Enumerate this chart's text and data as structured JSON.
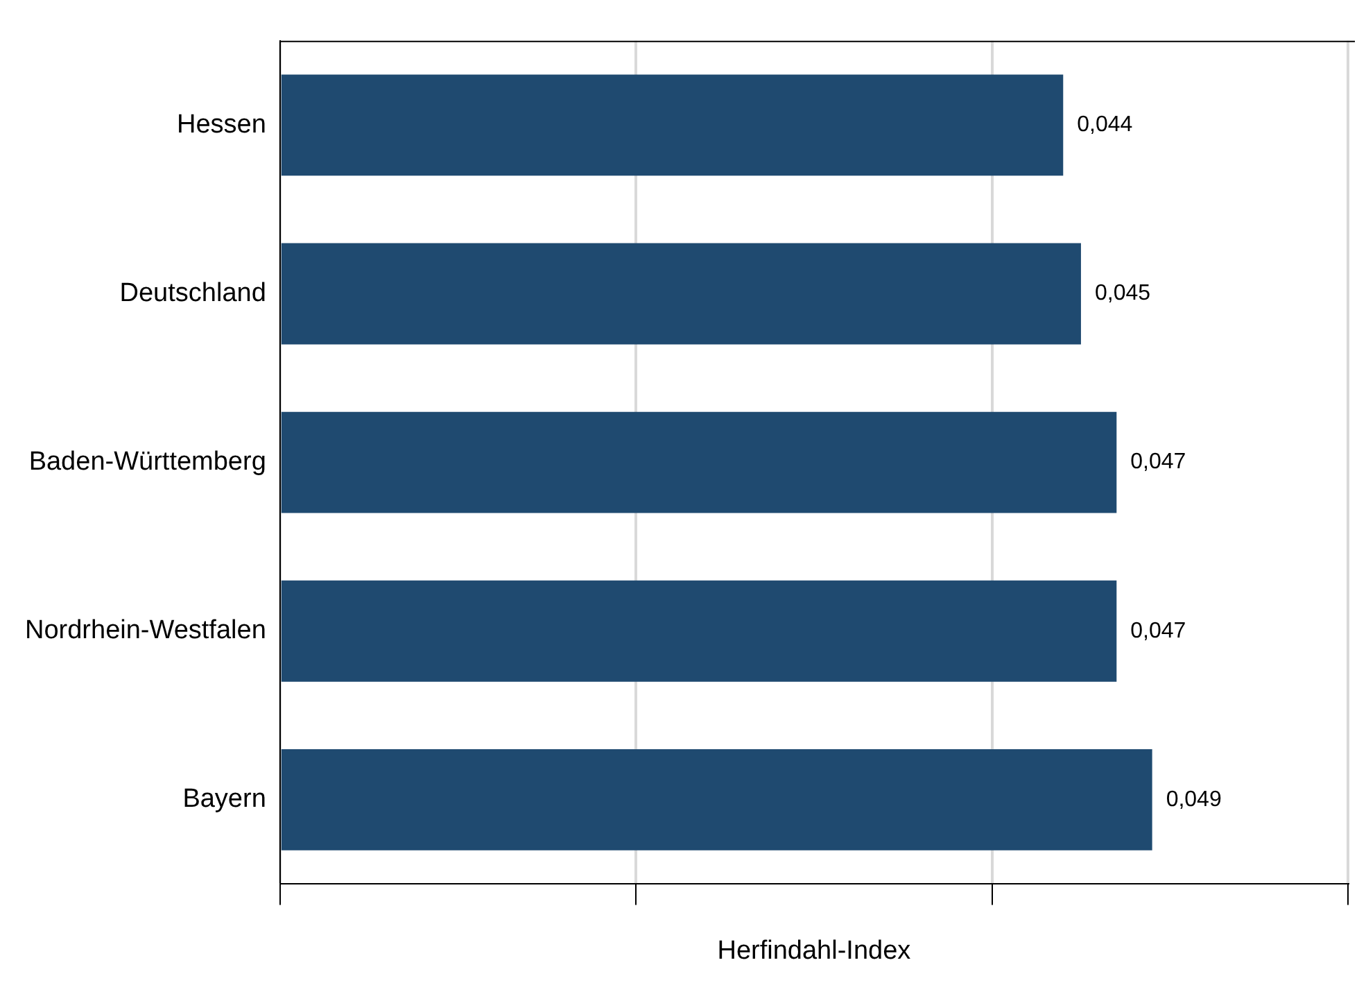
{
  "chart_data": {
    "type": "bar",
    "orientation": "horizontal",
    "xlabel": "Herfindahl-Index",
    "categories": [
      "Hessen",
      "Deutschland",
      "Baden-Württemberg",
      "Nordrhein-Westfalen",
      "Bayern"
    ],
    "values": [
      0.044,
      0.045,
      0.047,
      0.047,
      0.049
    ],
    "value_labels": [
      "0,044",
      "0,045",
      "0,047",
      "0,047",
      "0,049"
    ],
    "color": "#1f4a70",
    "xlim": [
      0,
      0.06
    ],
    "xticks": [
      {
        "value": 0,
        "label": null
      },
      {
        "value": 0.02,
        "label": null
      },
      {
        "value": 0.04,
        "label": null
      },
      {
        "value": 0.06,
        "label": null
      }
    ],
    "tick_labels": "y",
    "grid": "x",
    "legend": false
  }
}
